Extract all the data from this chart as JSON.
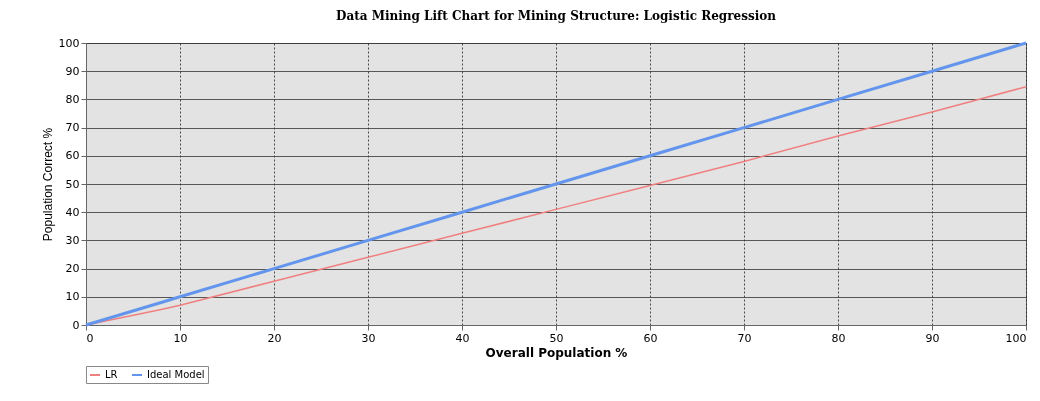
{
  "chart_data": {
    "type": "line",
    "title": "Data Mining Lift Chart for Mining Structure: Logistic Regression",
    "xlabel": "Overall Population %",
    "ylabel": "Population Correct %",
    "x": [
      0,
      8,
      10,
      20,
      30,
      40,
      50,
      60,
      70,
      80,
      90,
      100
    ],
    "series": [
      {
        "name": "LR",
        "color": "#f08080",
        "values": [
          0,
          5.5,
          7,
          15.5,
          24,
          32.5,
          41,
          49.5,
          58,
          67,
          75.5,
          84.5
        ]
      },
      {
        "name": "Ideal Model",
        "color": "#6495ed",
        "values": [
          0,
          8,
          10,
          20,
          30,
          40,
          50,
          60,
          70,
          80,
          90,
          100
        ]
      }
    ],
    "xlim": [
      0,
      100
    ],
    "ylim": [
      0,
      100
    ],
    "xticks": [
      0,
      10,
      20,
      30,
      40,
      50,
      60,
      70,
      80,
      90,
      100
    ],
    "yticks": [
      0,
      10,
      20,
      30,
      40,
      50,
      60,
      70,
      80,
      90,
      100
    ],
    "grid": true,
    "legend": "bottom",
    "marker": "none",
    "line_style": "solid"
  }
}
